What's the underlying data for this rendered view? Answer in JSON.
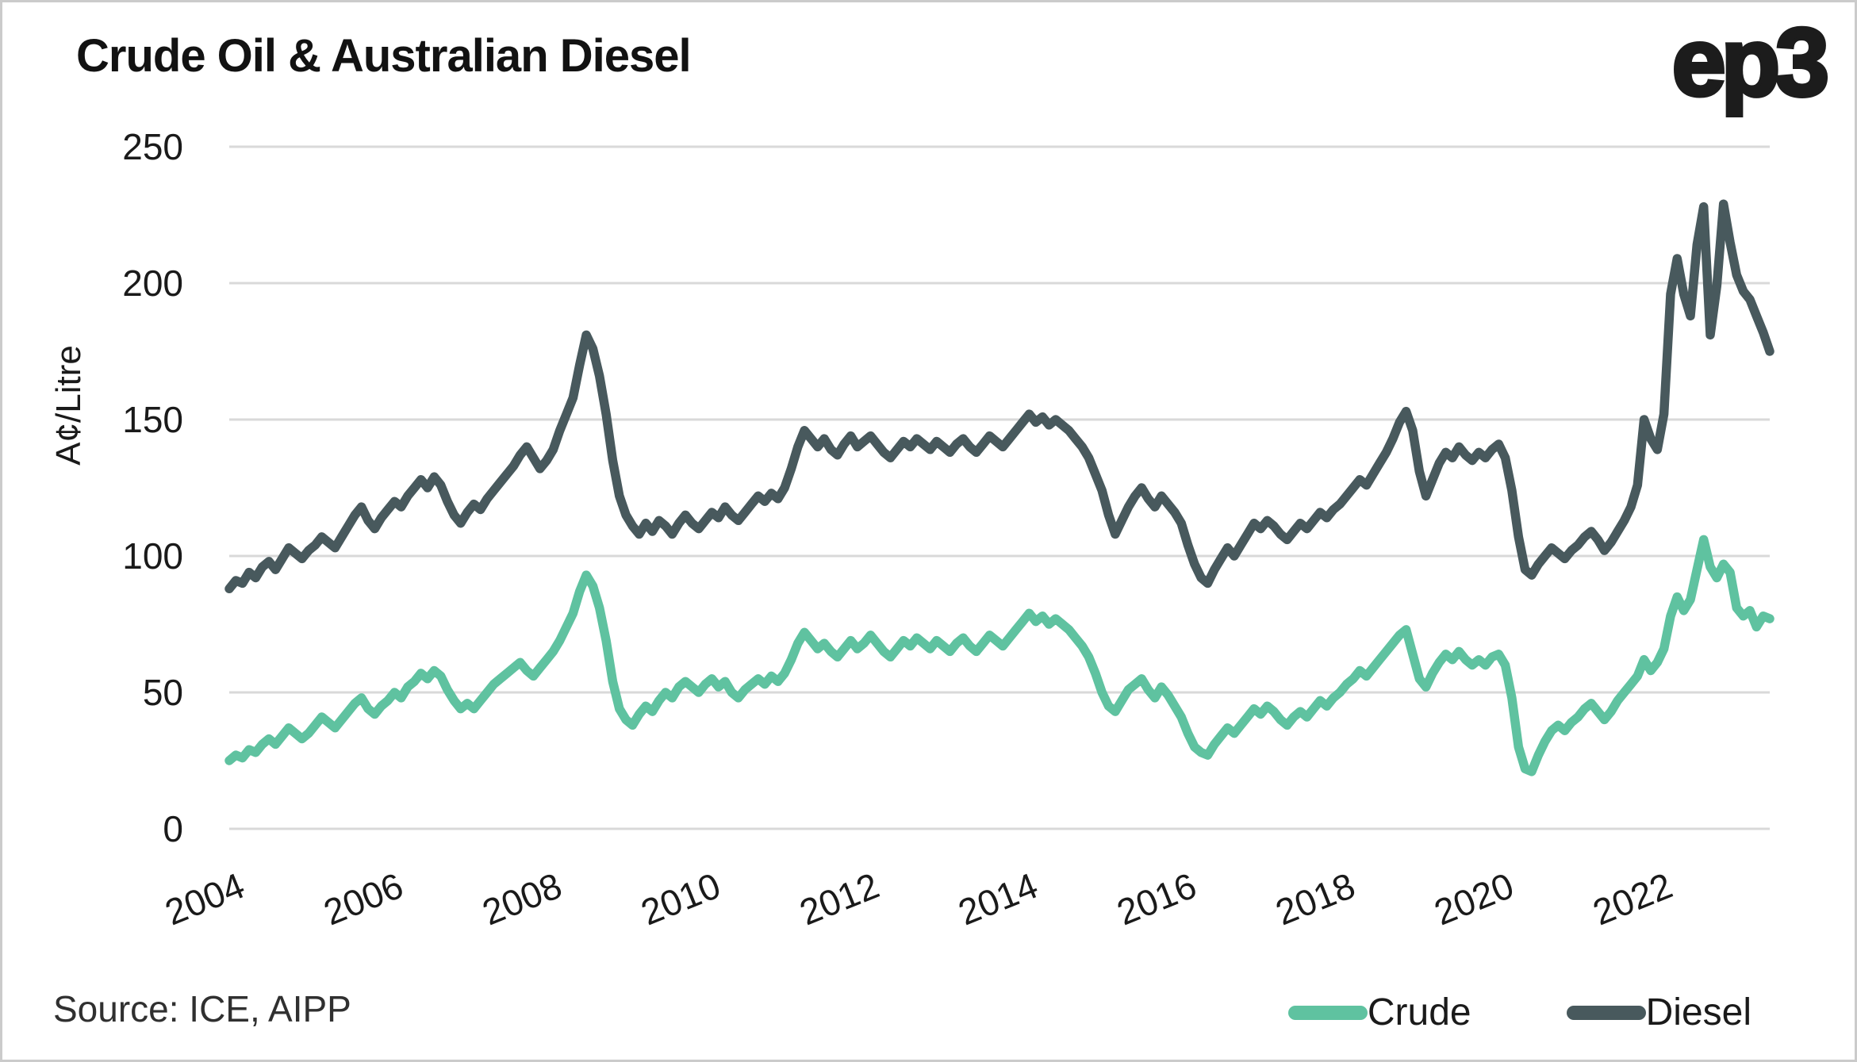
{
  "header": {
    "title": "Crude Oil & Australian Diesel",
    "logo_text": "ep3"
  },
  "footer": {
    "source": "Source: ICE, AIPP"
  },
  "colors": {
    "crude": "#5FC2A0",
    "diesel": "#48595D",
    "gridline": "#D9D9D9",
    "text": "#1A1A1A"
  },
  "chart_data": {
    "type": "line",
    "title": "Crude Oil & Australian Diesel",
    "xlabel": "",
    "ylabel": "A¢/Litre",
    "ylim": [
      0,
      250
    ],
    "y_ticks": [
      250,
      200,
      150,
      100,
      50,
      0
    ],
    "x_ticks": [
      "2004",
      "2006",
      "2008",
      "2010",
      "2012",
      "2014",
      "2016",
      "2018",
      "2020",
      "2022"
    ],
    "grid": true,
    "legend_position": "bottom-right",
    "x_start_year": 2004,
    "points_per_year": 12,
    "x_end_year": 2023.42,
    "series": [
      {
        "name": "Crude",
        "color": "#5FC2A0",
        "values": [
          25,
          27,
          26,
          29,
          28,
          31,
          33,
          31,
          34,
          37,
          35,
          33,
          35,
          38,
          41,
          39,
          37,
          40,
          43,
          46,
          48,
          44,
          42,
          45,
          47,
          50,
          48,
          52,
          54,
          57,
          55,
          58,
          56,
          51,
          47,
          44,
          46,
          44,
          47,
          50,
          53,
          55,
          57,
          59,
          61,
          58,
          56,
          59,
          62,
          65,
          69,
          74,
          79,
          87,
          93,
          89,
          81,
          69,
          54,
          44,
          40,
          38,
          42,
          45,
          43,
          47,
          50,
          48,
          52,
          54,
          52,
          50,
          53,
          55,
          52,
          54,
          50,
          48,
          51,
          53,
          55,
          53,
          56,
          54,
          57,
          62,
          68,
          72,
          69,
          66,
          68,
          65,
          63,
          66,
          69,
          66,
          68,
          71,
          68,
          65,
          63,
          66,
          69,
          67,
          70,
          68,
          66,
          69,
          67,
          65,
          68,
          70,
          67,
          65,
          68,
          71,
          69,
          67,
          70,
          73,
          76,
          79,
          76,
          78,
          75,
          77,
          75,
          73,
          70,
          67,
          63,
          57,
          50,
          45,
          43,
          47,
          51,
          53,
          55,
          51,
          48,
          52,
          49,
          45,
          41,
          35,
          30,
          28,
          27,
          31,
          34,
          37,
          35,
          38,
          41,
          44,
          42,
          45,
          43,
          40,
          38,
          41,
          43,
          41,
          44,
          47,
          45,
          48,
          50,
          53,
          55,
          58,
          56,
          59,
          62,
          65,
          68,
          71,
          73,
          64,
          55,
          52,
          57,
          61,
          64,
          62,
          65,
          62,
          60,
          62,
          60,
          63,
          64,
          60,
          48,
          30,
          22,
          21,
          27,
          32,
          36,
          38,
          36,
          39,
          41,
          44,
          46,
          43,
          40,
          43,
          47,
          50,
          53,
          56,
          62,
          58,
          61,
          66,
          78,
          85,
          80,
          84,
          95,
          106,
          96,
          92,
          97,
          94,
          81,
          78,
          80,
          74,
          78,
          77
        ]
      },
      {
        "name": "Diesel",
        "color": "#48595D",
        "values": [
          88,
          91,
          90,
          94,
          92,
          96,
          98,
          95,
          99,
          103,
          101,
          99,
          102,
          104,
          107,
          105,
          103,
          107,
          111,
          115,
          118,
          113,
          110,
          114,
          117,
          120,
          118,
          122,
          125,
          128,
          125,
          129,
          126,
          120,
          115,
          112,
          116,
          119,
          117,
          121,
          124,
          127,
          130,
          133,
          137,
          140,
          136,
          132,
          135,
          139,
          146,
          152,
          158,
          170,
          181,
          176,
          166,
          152,
          135,
          122,
          115,
          111,
          108,
          112,
          109,
          113,
          111,
          108,
          112,
          115,
          112,
          110,
          113,
          116,
          114,
          118,
          115,
          113,
          116,
          119,
          122,
          120,
          123,
          121,
          125,
          132,
          140,
          146,
          143,
          140,
          143,
          139,
          137,
          141,
          144,
          140,
          142,
          144,
          141,
          138,
          136,
          139,
          142,
          140,
          143,
          141,
          139,
          142,
          140,
          138,
          141,
          143,
          140,
          138,
          141,
          144,
          142,
          140,
          143,
          146,
          149,
          152,
          149,
          151,
          148,
          150,
          148,
          146,
          143,
          140,
          136,
          130,
          124,
          115,
          108,
          113,
          118,
          122,
          125,
          121,
          118,
          122,
          119,
          116,
          112,
          104,
          97,
          92,
          90,
          95,
          99,
          103,
          100,
          104,
          108,
          112,
          110,
          113,
          111,
          108,
          106,
          109,
          112,
          110,
          113,
          116,
          114,
          117,
          119,
          122,
          125,
          128,
          126,
          130,
          134,
          138,
          143,
          149,
          153,
          146,
          131,
          122,
          128,
          134,
          138,
          136,
          140,
          137,
          135,
          138,
          136,
          139,
          141,
          136,
          124,
          107,
          95,
          93,
          97,
          100,
          103,
          101,
          99,
          102,
          104,
          107,
          109,
          106,
          102,
          105,
          109,
          113,
          118,
          126,
          150,
          143,
          139,
          152,
          196,
          209,
          196,
          188,
          214,
          228,
          181,
          199,
          229,
          215,
          203,
          197,
          194,
          188,
          182,
          175
        ]
      }
    ]
  }
}
